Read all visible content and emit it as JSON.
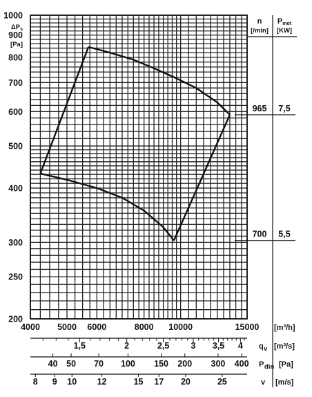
{
  "chart_data": {
    "type": "line",
    "y_axis": {
      "label_lines": [
        "ΔPs",
        "[Pa]"
      ],
      "scale": "log",
      "range": [
        200,
        1000
      ],
      "tick_labels": [
        {
          "value": 1000,
          "label": "1000"
        },
        {
          "value": 900,
          "label": "900"
        },
        {
          "value": 800,
          "label": "800"
        },
        {
          "value": 700,
          "label": "700"
        },
        {
          "value": 600,
          "label": "600"
        },
        {
          "value": 500,
          "label": "500"
        },
        {
          "value": 400,
          "label": "400"
        },
        {
          "value": 300,
          "label": "300"
        },
        {
          "value": 250,
          "label": "250"
        },
        {
          "value": 200,
          "label": "200"
        }
      ]
    },
    "x_axis": {
      "unit": "[m³/h]",
      "scale": "log",
      "range": [
        4000,
        15000
      ],
      "tick_labels": [
        {
          "value": 4000,
          "label": "4000"
        },
        {
          "value": 5000,
          "label": "5000"
        },
        {
          "value": 6000,
          "label": "6000"
        },
        {
          "value": 8000,
          "label": "8000"
        },
        {
          "value": 10000,
          "label": "10000"
        },
        {
          "value": 15000,
          "label": "15000"
        }
      ]
    },
    "secondary_scales": [
      {
        "symbol": "qv",
        "unit": "[m³/s]",
        "tick_labels": [
          {
            "value": 1.5,
            "label": "1,5"
          },
          {
            "value": 2,
            "label": "2"
          },
          {
            "value": 2.5,
            "label": "2,5"
          },
          {
            "value": 3,
            "label": "3"
          },
          {
            "value": 3.5,
            "label": "3,5"
          },
          {
            "value": 4,
            "label": "4"
          }
        ]
      },
      {
        "symbol": "Pdin",
        "unit": "[Pa]",
        "tick_labels": [
          {
            "value": 40,
            "label": "40"
          },
          {
            "value": 50,
            "label": "50"
          },
          {
            "value": 70,
            "label": "70"
          },
          {
            "value": 100,
            "label": "100"
          },
          {
            "value": 150,
            "label": "150"
          },
          {
            "value": 200,
            "label": "200"
          },
          {
            "value": 300,
            "label": "300"
          },
          {
            "value": 400,
            "label": "400"
          }
        ]
      },
      {
        "symbol": "v",
        "unit": "[m/s]",
        "tick_labels": [
          {
            "value": 8,
            "label": "8"
          },
          {
            "value": 9,
            "label": "9"
          },
          {
            "value": 10,
            "label": "10"
          },
          {
            "value": 12,
            "label": "12"
          },
          {
            "value": 15,
            "label": "15"
          },
          {
            "value": 17,
            "label": "17"
          },
          {
            "value": 20,
            "label": "20"
          },
          {
            "value": 25,
            "label": "25"
          }
        ]
      }
    ],
    "table": {
      "headers": [
        [
          "n",
          "[/min]"
        ],
        [
          "Pmot",
          "[KW]"
        ]
      ],
      "rows": [
        {
          "n": "965",
          "p": "7,5"
        },
        {
          "n": "700",
          "p": "5,5"
        }
      ]
    },
    "series": [
      {
        "x": [
          5700,
          6500,
          7500,
          8500,
          9600,
          11000,
          12500,
          13500
        ],
        "y": [
          845,
          820,
          790,
          755,
          720,
          680,
          630,
          590
        ]
      },
      {
        "x": [
          13500,
          9600
        ],
        "y": [
          590,
          303
        ]
      },
      {
        "x": [
          9600,
          9000,
          8000,
          7000,
          6000,
          5000,
          4250
        ],
        "y": [
          303,
          325,
          355,
          380,
          400,
          418,
          432
        ]
      },
      {
        "x": [
          4250,
          5700
        ],
        "y": [
          432,
          845
        ]
      }
    ]
  }
}
